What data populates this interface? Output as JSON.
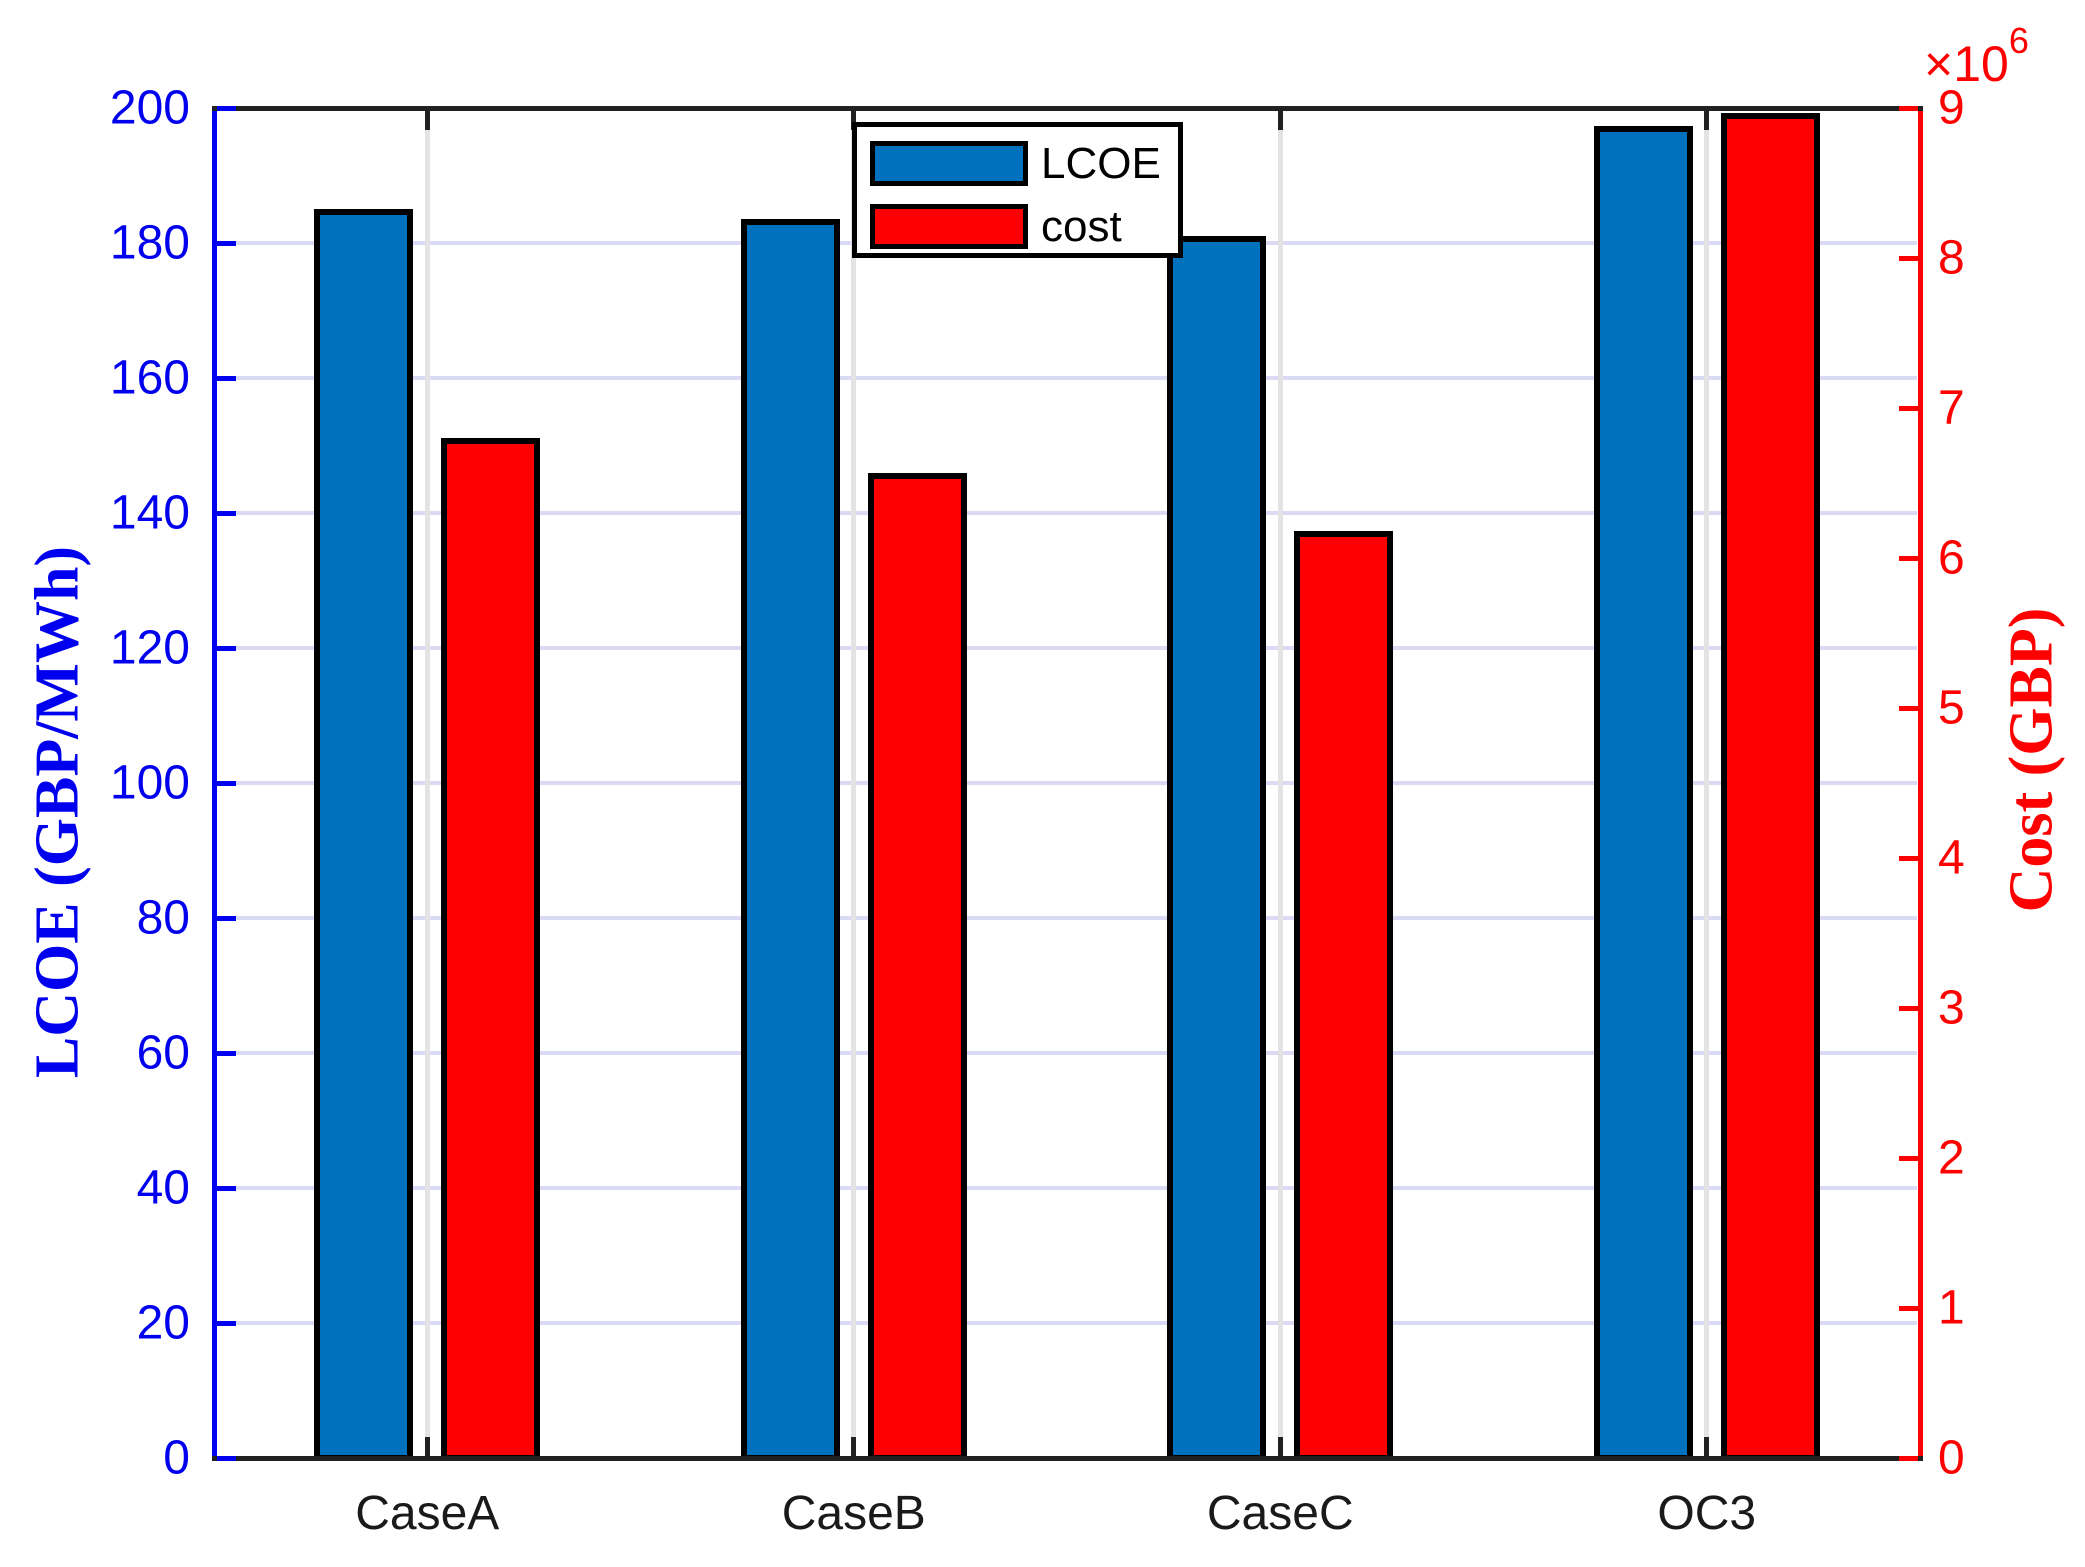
{
  "chart_data": {
    "type": "bar",
    "title": "",
    "categories": [
      "CaseA",
      "CaseB",
      "CaseC",
      "OC3"
    ],
    "series": [
      {
        "name": "LCOE",
        "axis": "left",
        "color": "#0072BD",
        "values": [
          185,
          183.5,
          181,
          197.3
        ]
      },
      {
        "name": "cost",
        "axis": "right",
        "color": "#FF0000",
        "values": [
          6800000,
          6570000,
          6180000,
          8970000
        ]
      }
    ],
    "left_axis": {
      "label": "LCOE (GBP/MWh)",
      "color": "#0000EE",
      "min": 0,
      "max": 200,
      "tick_step": 20,
      "tick_labels": [
        "0",
        "20",
        "40",
        "60",
        "80",
        "100",
        "120",
        "140",
        "160",
        "180",
        "200"
      ]
    },
    "right_axis": {
      "label": "Cost (GBP)",
      "color": "#FF0000",
      "min": 0,
      "max": 9000000,
      "tick_step": 1000000,
      "tick_labels": [
        "0",
        "1",
        "2",
        "3",
        "4",
        "5",
        "6",
        "7",
        "8",
        "9"
      ],
      "exponent_prefix": "×10",
      "exponent": "6"
    },
    "legend": {
      "position": "top-center",
      "labels": [
        "LCOE",
        "cost"
      ]
    },
    "grid": {
      "horizontal": true,
      "vertical": true,
      "y_color": "#DADAF5",
      "x_color": "#E3E3E3"
    },
    "spine_color": "#212121",
    "category_label_color": "#1A1A1A",
    "background": "#FFFFFF"
  }
}
